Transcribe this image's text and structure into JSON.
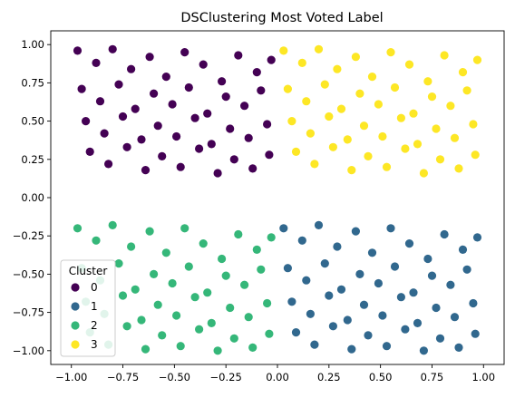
{
  "chart_data": {
    "type": "scatter",
    "title": "DSClustering Most Voted Label",
    "xlabel": "",
    "ylabel": "",
    "xlim": [
      -1.1,
      1.1
    ],
    "ylim": [
      -1.09,
      1.09
    ],
    "x_ticks": [
      -1.0,
      -0.75,
      -0.5,
      -0.25,
      0.0,
      0.25,
      0.5,
      0.75,
      1.0
    ],
    "x_tick_labels": [
      "−1.00",
      "−0.75",
      "−0.50",
      "−0.25",
      "0.00",
      "0.25",
      "0.50",
      "0.75",
      "1.00"
    ],
    "y_ticks": [
      -1.0,
      -0.75,
      -0.5,
      -0.25,
      0.0,
      0.25,
      0.5,
      0.75,
      1.0
    ],
    "y_tick_labels": [
      "−1.00",
      "−0.75",
      "−0.50",
      "−0.25",
      "0.00",
      "0.25",
      "0.50",
      "0.75",
      "1.00"
    ],
    "grid": false,
    "legend": {
      "title": "Cluster",
      "placement": "lower-left",
      "entries": [
        "0",
        "1",
        "2",
        "3"
      ]
    },
    "colors": {
      "0": "#440154",
      "1": "#31688e",
      "2": "#35b779",
      "3": "#fde725"
    },
    "series": [
      {
        "name": "0",
        "x": [
          -0.97,
          -0.88,
          -0.8,
          -0.71,
          -0.62,
          -0.54,
          -0.45,
          -0.36,
          -0.27,
          -0.19,
          -0.1,
          -0.03,
          -0.95,
          -0.86,
          -0.77,
          -0.69,
          -0.6,
          -0.51,
          -0.43,
          -0.34,
          -0.25,
          -0.16,
          -0.08,
          -0.93,
          -0.84,
          -0.75,
          -0.66,
          -0.58,
          -0.49,
          -0.4,
          -0.32,
          -0.23,
          -0.14,
          -0.05,
          -0.91,
          -0.82,
          -0.73,
          -0.64,
          -0.56,
          -0.47,
          -0.38,
          -0.29,
          -0.21,
          -0.12,
          -0.04
        ],
        "y": [
          0.96,
          0.88,
          0.97,
          0.84,
          0.92,
          0.79,
          0.95,
          0.87,
          0.76,
          0.93,
          0.82,
          0.9,
          0.71,
          0.63,
          0.74,
          0.58,
          0.68,
          0.61,
          0.72,
          0.55,
          0.66,
          0.6,
          0.7,
          0.5,
          0.42,
          0.53,
          0.38,
          0.47,
          0.4,
          0.52,
          0.35,
          0.45,
          0.39,
          0.48,
          0.3,
          0.22,
          0.33,
          0.18,
          0.27,
          0.2,
          0.32,
          0.16,
          0.25,
          0.19,
          0.28
        ]
      },
      {
        "name": "1",
        "x": [
          0.03,
          0.12,
          0.2,
          0.29,
          0.38,
          0.46,
          0.55,
          0.64,
          0.73,
          0.81,
          0.9,
          0.97,
          0.05,
          0.14,
          0.23,
          0.31,
          0.4,
          0.49,
          0.57,
          0.66,
          0.75,
          0.84,
          0.92,
          0.07,
          0.16,
          0.25,
          0.34,
          0.42,
          0.51,
          0.6,
          0.68,
          0.77,
          0.86,
          0.95,
          0.09,
          0.18,
          0.27,
          0.36,
          0.44,
          0.53,
          0.62,
          0.71,
          0.79,
          0.88,
          0.96
        ],
        "y": [
          -0.2,
          -0.28,
          -0.18,
          -0.32,
          -0.22,
          -0.36,
          -0.2,
          -0.3,
          -0.4,
          -0.24,
          -0.34,
          -0.26,
          -0.46,
          -0.54,
          -0.43,
          -0.6,
          -0.5,
          -0.56,
          -0.45,
          -0.62,
          -0.51,
          -0.57,
          -0.47,
          -0.68,
          -0.76,
          -0.64,
          -0.8,
          -0.7,
          -0.77,
          -0.65,
          -0.82,
          -0.72,
          -0.78,
          -0.69,
          -0.88,
          -0.96,
          -0.84,
          -0.99,
          -0.9,
          -0.97,
          -0.86,
          -1.0,
          -0.92,
          -0.98,
          -0.89
        ]
      },
      {
        "name": "2",
        "x": [
          -0.97,
          -0.88,
          -0.8,
          -0.71,
          -0.62,
          -0.54,
          -0.45,
          -0.36,
          -0.27,
          -0.19,
          -0.1,
          -0.03,
          -0.95,
          -0.86,
          -0.77,
          -0.69,
          -0.6,
          -0.51,
          -0.43,
          -0.34,
          -0.25,
          -0.16,
          -0.08,
          -0.93,
          -0.84,
          -0.75,
          -0.66,
          -0.58,
          -0.49,
          -0.4,
          -0.32,
          -0.23,
          -0.14,
          -0.05,
          -0.91,
          -0.82,
          -0.73,
          -0.64,
          -0.56,
          -0.47,
          -0.38,
          -0.29,
          -0.21,
          -0.12,
          -0.04
        ],
        "y": [
          -0.2,
          -0.28,
          -0.18,
          -0.32,
          -0.22,
          -0.36,
          -0.2,
          -0.3,
          -0.4,
          -0.24,
          -0.34,
          -0.26,
          -0.46,
          -0.54,
          -0.43,
          -0.6,
          -0.5,
          -0.56,
          -0.45,
          -0.62,
          -0.51,
          -0.57,
          -0.47,
          -0.68,
          -0.76,
          -0.64,
          -0.8,
          -0.7,
          -0.77,
          -0.65,
          -0.82,
          -0.72,
          -0.78,
          -0.69,
          -0.88,
          -0.96,
          -0.84,
          -0.99,
          -0.9,
          -0.97,
          -0.86,
          -1.0,
          -0.92,
          -0.98,
          -0.89
        ]
      },
      {
        "name": "3",
        "x": [
          0.03,
          0.12,
          0.2,
          0.29,
          0.38,
          0.46,
          0.55,
          0.64,
          0.73,
          0.81,
          0.9,
          0.97,
          0.05,
          0.14,
          0.23,
          0.31,
          0.4,
          0.49,
          0.57,
          0.66,
          0.75,
          0.84,
          0.92,
          0.07,
          0.16,
          0.25,
          0.34,
          0.42,
          0.51,
          0.6,
          0.68,
          0.77,
          0.86,
          0.95,
          0.09,
          0.18,
          0.27,
          0.36,
          0.44,
          0.53,
          0.62,
          0.71,
          0.79,
          0.88,
          0.96
        ],
        "y": [
          0.96,
          0.88,
          0.97,
          0.84,
          0.92,
          0.79,
          0.95,
          0.87,
          0.76,
          0.93,
          0.82,
          0.9,
          0.71,
          0.63,
          0.74,
          0.58,
          0.68,
          0.61,
          0.72,
          0.55,
          0.66,
          0.6,
          0.7,
          0.5,
          0.42,
          0.53,
          0.38,
          0.47,
          0.4,
          0.52,
          0.35,
          0.45,
          0.39,
          0.48,
          0.3,
          0.22,
          0.33,
          0.18,
          0.27,
          0.2,
          0.32,
          0.16,
          0.25,
          0.19,
          0.28
        ]
      }
    ]
  }
}
